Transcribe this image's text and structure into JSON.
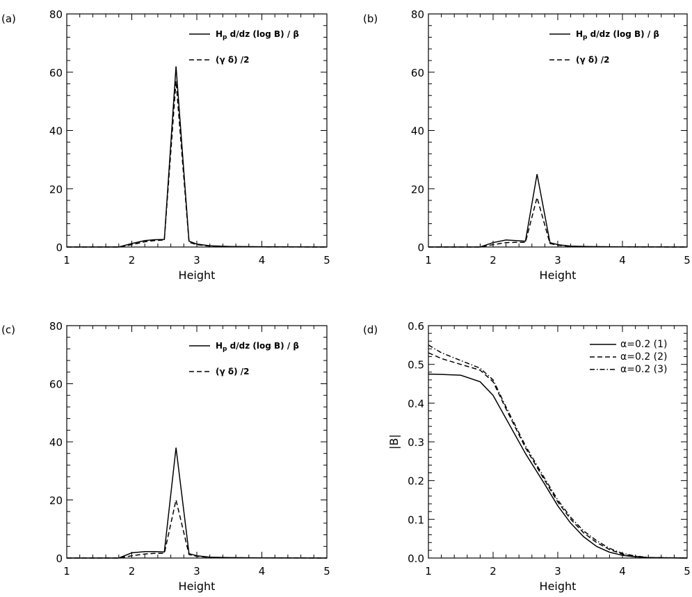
{
  "chart_data": [
    {
      "panel": "(a)",
      "type": "line",
      "title": "",
      "xlabel": "Height",
      "ylabel": "",
      "xlim": [
        1,
        5
      ],
      "ylim": [
        0,
        80
      ],
      "xticks": [
        1,
        2,
        3,
        4,
        5
      ],
      "yticks": [
        0,
        20,
        40,
        60,
        80
      ],
      "grid": false,
      "legend": "top-right",
      "series": [
        {
          "name": "H_p d/dz (log B) / β",
          "name_main": "H",
          "name_sub": "p",
          "name_rest": " d/dz (log B) / β",
          "style": "solid",
          "x": [
            1.0,
            1.8,
            2.0,
            2.2,
            2.35,
            2.5,
            2.68,
            2.88,
            3.0,
            3.2,
            3.5,
            4.0,
            5.0
          ],
          "y": [
            0,
            0,
            1.2,
            2.2,
            2.5,
            2.6,
            62,
            2.0,
            1.0,
            0.4,
            0.2,
            0.1,
            0
          ]
        },
        {
          "name": "(γ δ) /2",
          "name_main": "(γ δ) /2",
          "name_sub": "",
          "name_rest": "",
          "style": "dashed",
          "x": [
            1.0,
            1.8,
            2.0,
            2.2,
            2.35,
            2.5,
            2.68,
            2.88,
            3.0,
            3.2,
            3.5,
            4.0,
            5.0
          ],
          "y": [
            0,
            0,
            0.8,
            1.8,
            2.2,
            2.4,
            57,
            1.6,
            0.8,
            0.3,
            0.15,
            0.05,
            0
          ]
        }
      ]
    },
    {
      "panel": "(b)",
      "type": "line",
      "title": "",
      "xlabel": "Height",
      "ylabel": "",
      "xlim": [
        1,
        5
      ],
      "ylim": [
        0,
        80
      ],
      "xticks": [
        1,
        2,
        3,
        4,
        5
      ],
      "yticks": [
        0,
        20,
        40,
        60,
        80
      ],
      "grid": false,
      "legend": "top-right",
      "series": [
        {
          "name": "H_p d/dz (log B) / β",
          "name_main": "H",
          "name_sub": "p",
          "name_rest": " d/dz (log B) / β",
          "style": "solid",
          "x": [
            1.0,
            1.8,
            2.0,
            2.2,
            2.35,
            2.5,
            2.68,
            2.88,
            3.0,
            3.2,
            3.5,
            4.0,
            5.0
          ],
          "y": [
            0,
            0,
            1.5,
            2.4,
            2.2,
            2.0,
            25,
            1.5,
            0.8,
            0.3,
            0.15,
            0.05,
            0
          ]
        },
        {
          "name": "(γ δ) /2",
          "name_main": "(γ δ) /2",
          "name_sub": "",
          "name_rest": "",
          "style": "dashed",
          "x": [
            1.0,
            1.8,
            2.0,
            2.2,
            2.35,
            2.5,
            2.68,
            2.88,
            3.0,
            3.2,
            3.5,
            4.0,
            5.0
          ],
          "y": [
            0,
            0,
            0.8,
            1.5,
            1.6,
            1.6,
            17,
            1.2,
            0.6,
            0.2,
            0.1,
            0.05,
            0
          ]
        }
      ]
    },
    {
      "panel": "(c)",
      "type": "line",
      "title": "",
      "xlabel": "Height",
      "ylabel": "",
      "xlim": [
        1,
        5
      ],
      "ylim": [
        0,
        80
      ],
      "xticks": [
        1,
        2,
        3,
        4,
        5
      ],
      "yticks": [
        0,
        20,
        40,
        60,
        80
      ],
      "grid": false,
      "legend": "top-right",
      "series": [
        {
          "name": "H_p d/dz (log B) / β",
          "name_main": "H",
          "name_sub": "p",
          "name_rest": " d/dz (log B) / β",
          "style": "solid",
          "x": [
            1.0,
            1.8,
            2.0,
            2.2,
            2.35,
            2.5,
            2.68,
            2.88,
            3.0,
            3.2,
            3.5,
            4.0,
            5.0
          ],
          "y": [
            0,
            0,
            1.8,
            2.2,
            2.2,
            2.1,
            38,
            1.5,
            0.8,
            0.3,
            0.15,
            0.05,
            0
          ]
        },
        {
          "name": "(γ δ) /2",
          "name_main": "(γ δ) /2",
          "name_sub": "",
          "name_rest": "",
          "style": "dashed",
          "x": [
            1.0,
            1.8,
            2.0,
            2.2,
            2.35,
            2.5,
            2.68,
            2.88,
            3.0,
            3.2,
            3.5,
            4.0,
            5.0
          ],
          "y": [
            0,
            0,
            0.8,
            1.4,
            1.6,
            1.6,
            20,
            1.2,
            0.6,
            0.2,
            0.1,
            0.05,
            0
          ]
        }
      ]
    },
    {
      "panel": "(d)",
      "type": "line",
      "title": "",
      "xlabel": "Height",
      "ylabel": "|B|",
      "xlim": [
        1,
        5
      ],
      "ylim": [
        0,
        0.6
      ],
      "xticks": [
        1,
        2,
        3,
        4,
        5
      ],
      "yticks": [
        0.0,
        0.1,
        0.2,
        0.3,
        0.4,
        0.5,
        0.6
      ],
      "ytick_labels": [
        "0.0",
        "0.1",
        "0.2",
        "0.3",
        "0.4",
        "0.5",
        "0.6"
      ],
      "grid": false,
      "legend": "top-right",
      "series": [
        {
          "name": "α=0.2 (1)",
          "name_main": "α=0.2 (1)",
          "name_sub": "",
          "name_rest": "",
          "style": "solid",
          "x": [
            1.0,
            1.2,
            1.5,
            1.8,
            2.0,
            2.2,
            2.5,
            2.8,
            3.0,
            3.2,
            3.4,
            3.6,
            3.8,
            4.0,
            4.2,
            4.4,
            5.0
          ],
          "y": [
            0.475,
            0.474,
            0.472,
            0.455,
            0.42,
            0.36,
            0.27,
            0.19,
            0.135,
            0.09,
            0.055,
            0.03,
            0.015,
            0.007,
            0.003,
            0.001,
            0
          ]
        },
        {
          "name": "α=0.2 (2)",
          "name_main": "α=0.2 (2)",
          "name_sub": "",
          "name_rest": "",
          "style": "dashed",
          "x": [
            1.0,
            1.2,
            1.5,
            1.8,
            2.0,
            2.2,
            2.5,
            2.8,
            3.0,
            3.2,
            3.4,
            3.6,
            3.8,
            4.0,
            4.2,
            4.4,
            5.0
          ],
          "y": [
            0.53,
            0.515,
            0.5,
            0.485,
            0.455,
            0.385,
            0.285,
            0.2,
            0.145,
            0.1,
            0.065,
            0.04,
            0.022,
            0.01,
            0.004,
            0.001,
            0
          ]
        },
        {
          "name": "α=0.2 (3)",
          "name_main": "α=0.2 (3)",
          "name_sub": "",
          "name_rest": "",
          "style": "dashdot",
          "x": [
            1.0,
            1.2,
            1.5,
            1.8,
            2.0,
            2.2,
            2.5,
            2.8,
            3.0,
            3.2,
            3.4,
            3.6,
            3.8,
            4.0,
            4.2,
            4.4,
            5.0
          ],
          "y": [
            0.55,
            0.53,
            0.51,
            0.49,
            0.46,
            0.39,
            0.29,
            0.205,
            0.15,
            0.105,
            0.07,
            0.045,
            0.025,
            0.012,
            0.005,
            0.0015,
            0
          ]
        }
      ]
    }
  ]
}
